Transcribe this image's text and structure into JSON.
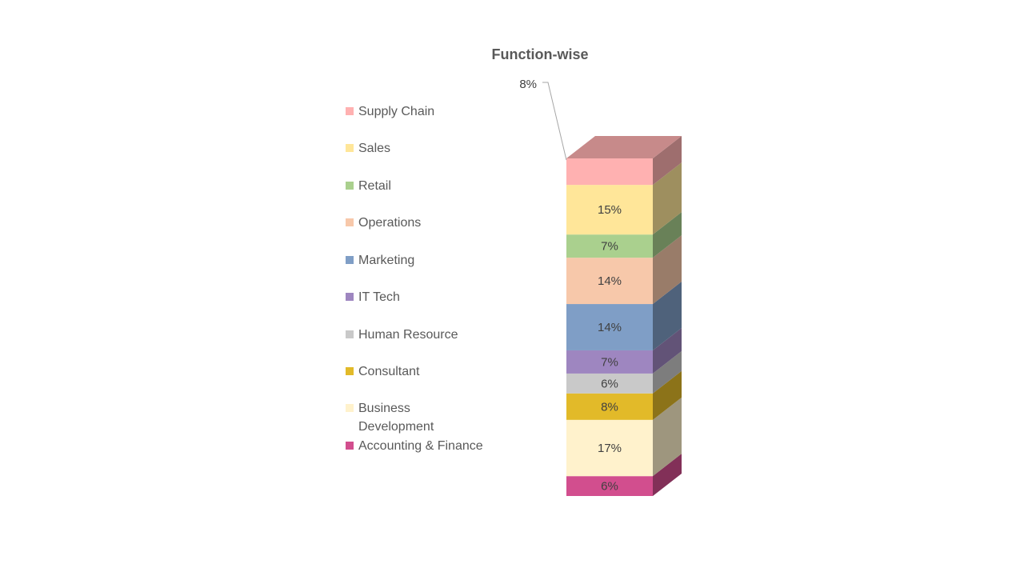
{
  "chart_data": {
    "type": "bar",
    "variant": "100% stacked 3D column",
    "title": "Function-wise",
    "legend_position": "left",
    "grid": false,
    "series": [
      {
        "name": "Accounting & Finance",
        "value": 6,
        "label": "6%",
        "color": "#D24E8E"
      },
      {
        "name": "Business Development",
        "value": 17,
        "label": "17%",
        "color": "#FFF2CC"
      },
      {
        "name": "Consultant",
        "value": 8,
        "label": "8%",
        "color": "#E2BA29"
      },
      {
        "name": "Human Resource",
        "value": 6,
        "label": "6%",
        "color": "#C9C9C9"
      },
      {
        "name": "IT Tech",
        "value": 7,
        "label": "7%",
        "color": "#9E86C0"
      },
      {
        "name": "Marketing",
        "value": 14,
        "label": "14%",
        "color": "#7F9EC6"
      },
      {
        "name": "Operations",
        "value": 14,
        "label": "14%",
        "color": "#F7C8AA"
      },
      {
        "name": "Retail",
        "value": 7,
        "label": "7%",
        "color": "#AAD08E"
      },
      {
        "name": "Sales",
        "value": 15,
        "label": "15%",
        "color": "#FFE699"
      },
      {
        "name": "Supply Chain",
        "value": 8,
        "label": "8%",
        "color": "#FFB1B1"
      }
    ]
  }
}
